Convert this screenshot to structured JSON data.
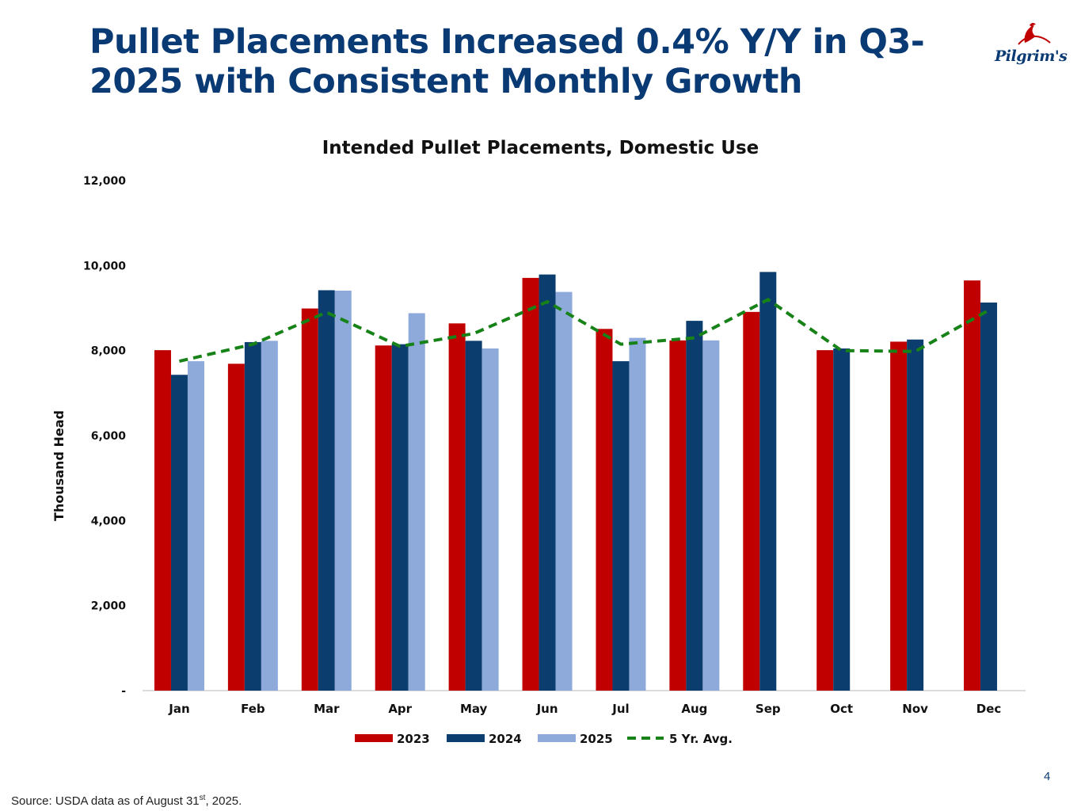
{
  "slide": {
    "title": "Pullet Placements Increased 0.4% Y/Y in Q3-2025 with Consistent Monthly Growth",
    "title_line1": "Pullet Placements Increased 0.4% Y/Y in Q3-",
    "title_line2": "2025 with Consistent Monthly Growth",
    "logo_text": "Pilgrim's",
    "page_number": "4",
    "source_prefix": "Source: USDA data as of August 31",
    "source_sup": "st",
    "source_suffix": ", 2025."
  },
  "chart_data": {
    "type": "bar",
    "title": "Intended Pullet Placements, Domestic Use",
    "xlabel": "",
    "ylabel": "Thousand Head",
    "ylim": [
      0,
      12000
    ],
    "yticks": [
      0,
      2000,
      4000,
      6000,
      8000,
      10000,
      12000
    ],
    "ytick_labels": [
      "-",
      "2,000",
      "4,000",
      "6,000",
      "8,000",
      "10,000",
      "12,000"
    ],
    "categories": [
      "Jan",
      "Feb",
      "Mar",
      "Apr",
      "May",
      "Jun",
      "Jul",
      "Aug",
      "Sep",
      "Oct",
      "Nov",
      "Dec"
    ],
    "series": [
      {
        "name": "2023",
        "kind": "bar",
        "color": "#c00000",
        "values": [
          8010,
          7690,
          8990,
          8120,
          8640,
          9710,
          8510,
          8240,
          8910,
          8010,
          8210,
          9650
        ]
      },
      {
        "name": "2024",
        "kind": "bar",
        "color": "#0b3d6e",
        "values": [
          7430,
          8200,
          9420,
          8150,
          8230,
          9790,
          7750,
          8700,
          9850,
          8050,
          8260,
          9130
        ]
      },
      {
        "name": "2025",
        "kind": "bar",
        "color": "#8eaadb",
        "values": [
          7750,
          8230,
          9410,
          8880,
          8050,
          9380,
          8300,
          8240,
          null,
          null,
          null,
          null
        ]
      },
      {
        "name": "5 Yr. Avg.",
        "kind": "line",
        "color": "#178217",
        "values": [
          7750,
          8150,
          8900,
          8100,
          8400,
          9150,
          8150,
          8300,
          9200,
          8000,
          7980,
          8950
        ]
      }
    ],
    "legend_position": "bottom",
    "grid": false
  }
}
